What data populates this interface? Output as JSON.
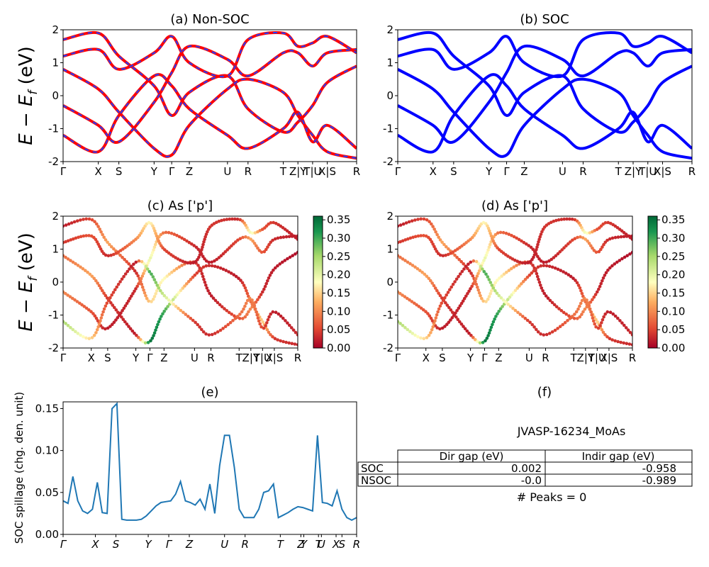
{
  "figure": {
    "ylabel_main": "E − E",
    "ylabel_sub": "f",
    "ylabel_unit": " (eV)"
  },
  "panels": {
    "a": {
      "title": "(a) Non-SOC"
    },
    "b": {
      "title": "(b) SOC"
    },
    "c": {
      "title": "(c)  As ['p']"
    },
    "d": {
      "title": "(d) As ['p']"
    },
    "e": {
      "title": "(e)",
      "ylabel": "SOC spillage (chg. den. unit)"
    },
    "f": {
      "title": "(f)"
    }
  },
  "kpath_labels": [
    "Γ",
    "X",
    "S",
    "Y",
    "Γ",
    "Z",
    "U",
    "R",
    "T",
    "Z|Y",
    "T|U",
    "X|S",
    "R"
  ],
  "table": {
    "material": "JVASP-16234_MoAs",
    "columns": [
      "",
      "Dir gap (eV)",
      "Indir gap (eV)"
    ],
    "rows": [
      [
        "SOC",
        "0.002",
        "-0.958"
      ],
      [
        "NSOC",
        "-0.0",
        "-0.989"
      ]
    ],
    "peaks": "# Peaks = 0"
  },
  "colorbar": {
    "ticks": [
      "0.00",
      "0.05",
      "0.10",
      "0.15",
      "0.20",
      "0.25",
      "0.30",
      "0.35"
    ],
    "low_color": "#a50026",
    "mid_color": "#ffffbf",
    "high_color": "#006837"
  },
  "colors": {
    "nonsoc_band": "#ff0000",
    "nonsoc_dash": "#1f3fff",
    "soc_band": "#0000ff",
    "spillage_line": "#1f77b4"
  },
  "chart_data": [
    {
      "type": "line",
      "panel": "a",
      "title": "(a) Non-SOC",
      "ylabel": "E − E_f (eV)",
      "ylim": [
        -2,
        2
      ],
      "yticks": [
        -2,
        -1,
        0,
        1,
        2
      ],
      "xtick_labels": [
        "Γ",
        "X",
        "S",
        "Y",
        "Γ",
        "Z",
        "U",
        "R",
        "T",
        "Z|Y",
        "T|U",
        "X|S",
        "R"
      ],
      "series_note": "band structure, red lines with blue dashes",
      "bands": [
        [
          1.7,
          1.9,
          1.2,
          0.3,
          -0.6,
          0.1,
          0.6,
          -0.4,
          -1.1,
          -0.8,
          -0.3,
          0.4,
          0.9
        ],
        [
          0.8,
          0.2,
          -0.5,
          -1.6,
          -1.8,
          -0.9,
          0.2,
          0.5,
          0.1,
          -0.6,
          -1.2,
          -1.7,
          -1.9
        ],
        [
          -0.3,
          -0.9,
          -1.4,
          -0.2,
          0.7,
          1.5,
          1.1,
          0.6,
          1.3,
          1.3,
          0.9,
          1.3,
          1.4
        ],
        [
          -1.2,
          -1.7,
          -0.6,
          0.6,
          0.3,
          -0.4,
          -1.2,
          -1.6,
          -1.0,
          -0.5,
          -1.4,
          -0.9,
          -1.6
        ],
        [
          1.2,
          1.4,
          0.8,
          1.3,
          1.8,
          1.0,
          0.6,
          1.7,
          1.9,
          1.5,
          1.6,
          1.8,
          1.3
        ]
      ]
    },
    {
      "type": "line",
      "panel": "b",
      "title": "(b) SOC",
      "ylim": [
        -2,
        2
      ],
      "yticks": [
        -2,
        -1,
        0,
        1,
        2
      ],
      "xtick_labels": [
        "Γ",
        "X",
        "S",
        "Y",
        "Γ",
        "Z",
        "U",
        "R",
        "T",
        "Z|Y",
        "T|U",
        "X|S",
        "R"
      ],
      "series_note": "band structure, blue lines",
      "bands": [
        [
          1.7,
          1.9,
          1.2,
          0.3,
          -0.6,
          0.1,
          0.6,
          -0.4,
          -1.1,
          -0.8,
          -0.3,
          0.4,
          0.9
        ],
        [
          0.8,
          0.2,
          -0.5,
          -1.6,
          -1.8,
          -0.9,
          0.2,
          0.5,
          0.1,
          -0.6,
          -1.2,
          -1.7,
          -1.9
        ],
        [
          -0.3,
          -0.9,
          -1.4,
          -0.2,
          0.7,
          1.5,
          1.1,
          0.6,
          1.3,
          1.3,
          0.9,
          1.3,
          1.4
        ],
        [
          -1.2,
          -1.7,
          -0.6,
          0.6,
          0.3,
          -0.4,
          -1.2,
          -1.6,
          -1.0,
          -0.5,
          -1.4,
          -0.9,
          -1.6
        ],
        [
          1.2,
          1.4,
          0.8,
          1.3,
          1.8,
          1.0,
          0.6,
          1.7,
          1.9,
          1.5,
          1.6,
          1.8,
          1.3
        ]
      ]
    },
    {
      "type": "scatter",
      "panel": "c",
      "title": "(c)  As ['p']",
      "ylim": [
        -2,
        2
      ],
      "yticks": [
        -2,
        -1,
        0,
        1,
        2
      ],
      "colorbar_range": [
        0.0,
        0.36
      ],
      "xtick_labels": [
        "Γ",
        "X",
        "S",
        "Y",
        "Γ",
        "Z",
        "U",
        "R",
        "T",
        "Z|Y",
        "T|U",
        "X|S",
        "R"
      ],
      "bands": [
        [
          1.7,
          1.9,
          1.2,
          0.3,
          -0.6,
          0.1,
          0.6,
          -0.4,
          -1.1,
          -0.8,
          -0.3,
          0.4,
          0.9
        ],
        [
          0.8,
          0.2,
          -0.5,
          -1.6,
          -1.8,
          -0.9,
          0.2,
          0.5,
          0.1,
          -0.6,
          -1.2,
          -1.7,
          -1.9
        ],
        [
          -0.3,
          -0.9,
          -1.4,
          -0.2,
          0.7,
          1.5,
          1.1,
          0.6,
          1.3,
          1.3,
          0.9,
          1.3,
          1.4
        ],
        [
          -1.2,
          -1.7,
          -0.6,
          0.6,
          0.3,
          -0.4,
          -1.2,
          -1.6,
          -1.0,
          -0.5,
          -1.4,
          -0.9,
          -1.6
        ],
        [
          1.2,
          1.4,
          0.8,
          1.3,
          1.8,
          1.0,
          0.6,
          1.7,
          1.9,
          1.5,
          1.6,
          1.8,
          1.3
        ]
      ],
      "weights": [
        [
          0.02,
          0.05,
          0.12,
          0.03,
          0.15,
          0.18,
          0.04,
          0.02,
          0.06,
          0.1,
          0.03,
          0.02,
          0.01
        ],
        [
          0.08,
          0.12,
          0.04,
          0.02,
          0.35,
          0.3,
          0.05,
          0.03,
          0.02,
          0.08,
          0.15,
          0.04,
          0.03
        ],
        [
          0.1,
          0.06,
          0.02,
          0.03,
          0.2,
          0.08,
          0.03,
          0.02,
          0.05,
          0.12,
          0.06,
          0.03,
          0.02
        ],
        [
          0.25,
          0.15,
          0.05,
          0.02,
          0.3,
          0.22,
          0.04,
          0.03,
          0.08,
          0.1,
          0.05,
          0.02,
          0.03
        ],
        [
          0.04,
          0.06,
          0.03,
          0.1,
          0.18,
          0.05,
          0.02,
          0.04,
          0.03,
          0.2,
          0.06,
          0.04,
          0.02
        ]
      ]
    },
    {
      "type": "scatter",
      "panel": "d",
      "title": "(d) As ['p']",
      "ylim": [
        -2,
        2
      ],
      "yticks": [
        -2,
        -1,
        0,
        1,
        2
      ],
      "colorbar_range": [
        0.0,
        0.36
      ],
      "xtick_labels": [
        "Γ",
        "X",
        "S",
        "Y",
        "Γ",
        "Z",
        "U",
        "R",
        "T",
        "Z|Y",
        "T|U",
        "X|S",
        "R"
      ],
      "bands": [
        [
          1.7,
          1.9,
          1.2,
          0.3,
          -0.6,
          0.1,
          0.6,
          -0.4,
          -1.1,
          -0.8,
          -0.3,
          0.4,
          0.9
        ],
        [
          0.8,
          0.2,
          -0.5,
          -1.6,
          -1.8,
          -0.9,
          0.2,
          0.5,
          0.1,
          -0.6,
          -1.2,
          -1.7,
          -1.9
        ],
        [
          -0.3,
          -0.9,
          -1.4,
          -0.2,
          0.7,
          1.5,
          1.1,
          0.6,
          1.3,
          1.3,
          0.9,
          1.3,
          1.4
        ],
        [
          -1.2,
          -1.7,
          -0.6,
          0.6,
          0.3,
          -0.4,
          -1.2,
          -1.6,
          -1.0,
          -0.5,
          -1.4,
          -0.9,
          -1.6
        ],
        [
          1.2,
          1.4,
          0.8,
          1.3,
          1.8,
          1.0,
          0.6,
          1.7,
          1.9,
          1.5,
          1.6,
          1.8,
          1.3
        ]
      ],
      "weights": [
        [
          0.02,
          0.05,
          0.12,
          0.03,
          0.15,
          0.18,
          0.04,
          0.02,
          0.06,
          0.1,
          0.03,
          0.02,
          0.01
        ],
        [
          0.08,
          0.12,
          0.04,
          0.02,
          0.35,
          0.3,
          0.05,
          0.03,
          0.02,
          0.08,
          0.15,
          0.04,
          0.03
        ],
        [
          0.1,
          0.06,
          0.02,
          0.03,
          0.2,
          0.08,
          0.03,
          0.02,
          0.05,
          0.12,
          0.06,
          0.03,
          0.02
        ],
        [
          0.25,
          0.15,
          0.05,
          0.02,
          0.3,
          0.22,
          0.04,
          0.03,
          0.08,
          0.1,
          0.05,
          0.02,
          0.03
        ],
        [
          0.04,
          0.06,
          0.03,
          0.1,
          0.18,
          0.05,
          0.02,
          0.04,
          0.03,
          0.2,
          0.06,
          0.04,
          0.02
        ]
      ]
    },
    {
      "type": "line",
      "panel": "e",
      "title": "(e)",
      "ylabel": "SOC spillage (chg. den. unit)",
      "ylim": [
        0.0,
        0.158
      ],
      "yticks": [
        0.0,
        0.05,
        0.1,
        0.15
      ],
      "ytick_labels": [
        "0.00",
        "0.05",
        "0.10",
        "0.15"
      ],
      "xtick_labels": [
        "Γ",
        "X",
        "S",
        "Y",
        "Γ",
        "Z",
        "U",
        "R",
        "T",
        "Z",
        "Y",
        "T",
        "U",
        "X",
        "S",
        "R"
      ],
      "x": [
        0,
        1,
        2,
        3,
        4,
        5,
        6,
        7,
        8,
        9,
        10,
        11,
        12,
        13,
        14,
        15,
        16,
        17,
        18,
        19,
        20,
        21,
        22,
        23,
        24,
        25,
        26,
        27,
        28,
        29,
        30,
        31,
        32,
        33,
        34,
        35,
        36,
        37,
        38,
        39,
        40,
        41,
        42,
        43,
        44,
        45,
        46,
        47,
        48,
        49,
        50,
        51,
        52,
        53,
        54,
        55,
        56,
        57,
        58,
        59,
        60
      ],
      "values": [
        0.04,
        0.037,
        0.069,
        0.04,
        0.028,
        0.025,
        0.03,
        0.062,
        0.026,
        0.025,
        0.15,
        0.156,
        0.018,
        0.017,
        0.017,
        0.017,
        0.018,
        0.022,
        0.028,
        0.034,
        0.038,
        0.039,
        0.04,
        0.048,
        0.063,
        0.04,
        0.038,
        0.035,
        0.042,
        0.03,
        0.06,
        0.025,
        0.082,
        0.118,
        0.118,
        0.08,
        0.03,
        0.02,
        0.02,
        0.02,
        0.03,
        0.05,
        0.052,
        0.06,
        0.02,
        0.023,
        0.026,
        0.03,
        0.033,
        0.032,
        0.03,
        0.028,
        0.118,
        0.038,
        0.037,
        0.034,
        0.052,
        0.03,
        0.02,
        0.017,
        0.02
      ]
    }
  ]
}
